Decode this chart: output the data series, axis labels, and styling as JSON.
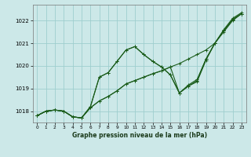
{
  "title": "Graphe pression niveau de la mer (hPa)",
  "bg_color": "#cce8e8",
  "grid_color": "#9ecece",
  "line_color": "#1a5c1a",
  "xlim": [
    -0.5,
    23.5
  ],
  "ylim": [
    1017.5,
    1022.7
  ],
  "yticks": [
    1018,
    1019,
    1020,
    1021,
    1022
  ],
  "xticks": [
    0,
    1,
    2,
    3,
    4,
    5,
    6,
    7,
    8,
    9,
    10,
    11,
    12,
    13,
    14,
    15,
    16,
    17,
    18,
    19,
    20,
    21,
    22,
    23
  ],
  "series": [
    [
      1017.8,
      1018.0,
      1018.05,
      1018.0,
      1017.75,
      1017.7,
      1018.15,
      1018.45,
      1018.65,
      1018.9,
      1019.2,
      1019.35,
      1019.5,
      1019.65,
      1019.78,
      1019.95,
      1020.1,
      1020.3,
      1020.5,
      1020.7,
      1021.0,
      1021.5,
      1022.0,
      1022.3
    ],
    [
      1017.8,
      1018.0,
      1018.05,
      1018.0,
      1017.75,
      1017.7,
      1018.15,
      1018.45,
      1018.65,
      1018.9,
      1019.2,
      1019.35,
      1019.5,
      1019.65,
      1019.78,
      1019.95,
      1018.8,
      1019.1,
      1019.3,
      1020.25,
      1021.0,
      1021.55,
      1022.05,
      1022.3
    ],
    [
      1017.8,
      1018.0,
      1018.05,
      1018.0,
      1017.75,
      1017.7,
      1018.2,
      1019.5,
      1019.7,
      1020.2,
      1020.7,
      1020.85,
      1020.5,
      1020.2,
      1019.95,
      1019.6,
      1018.8,
      1019.1,
      1019.35,
      1020.3,
      1021.0,
      1021.55,
      1022.05,
      1022.3
    ],
    [
      1017.8,
      1018.0,
      1018.05,
      1018.0,
      1017.75,
      1017.7,
      1018.2,
      1019.5,
      1019.7,
      1020.2,
      1020.7,
      1020.85,
      1020.5,
      1020.2,
      1019.95,
      1019.6,
      1018.8,
      1019.15,
      1019.4,
      1020.3,
      1021.0,
      1021.6,
      1022.1,
      1022.35
    ]
  ]
}
